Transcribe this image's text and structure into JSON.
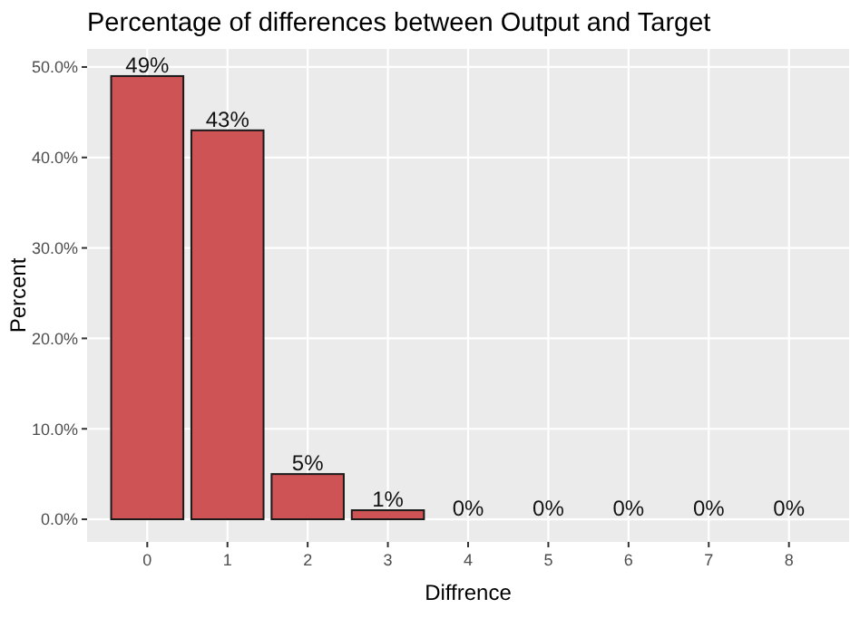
{
  "chart_data": {
    "type": "bar",
    "title": "Percentage of differences between Output and Target",
    "xlabel": "Diffrence",
    "ylabel": "Percent",
    "categories": [
      "0",
      "1",
      "2",
      "3",
      "4",
      "5",
      "6",
      "7",
      "8"
    ],
    "values": [
      49,
      43,
      5,
      1,
      0,
      0,
      0,
      0,
      0
    ],
    "value_labels": [
      "49%",
      "43%",
      "5%",
      "1%",
      "0%",
      "0%",
      "0%",
      "0%",
      "0%"
    ],
    "color": "#cd5355",
    "ylim": [
      -2.5,
      52
    ],
    "yticks": [
      {
        "value": 0,
        "label": "0.0%"
      },
      {
        "value": 10,
        "label": "10.0%"
      },
      {
        "value": 20,
        "label": "20.0%"
      },
      {
        "value": 30,
        "label": "30.0%"
      },
      {
        "value": 40,
        "label": "40.0%"
      },
      {
        "value": 50,
        "label": "50.0%"
      }
    ],
    "grid": true
  }
}
